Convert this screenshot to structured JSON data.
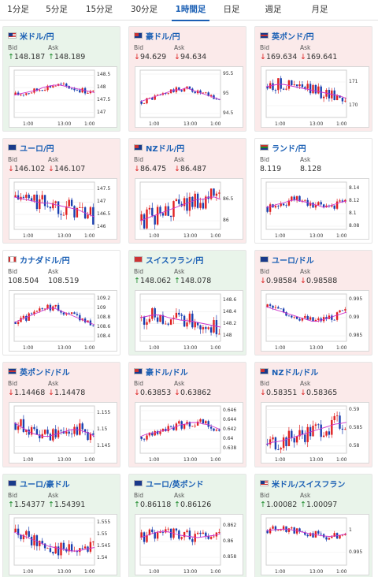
{
  "tabs": [
    {
      "label": "1分足",
      "active": false
    },
    {
      "label": "5分足",
      "active": false
    },
    {
      "label": "15分足",
      "active": false
    },
    {
      "label": "30分足",
      "active": false
    },
    {
      "label": "1時間足",
      "active": true
    },
    {
      "label": "日足",
      "active": false
    },
    {
      "label": "週足",
      "active": false
    },
    {
      "label": "月足",
      "active": false
    }
  ],
  "labels": {
    "bid": "Bid",
    "ask": "Ask"
  },
  "x_ticks": [
    "1:00",
    "13:00",
    "1:00"
  ],
  "colors": {
    "up_bg": "#e9f4ea",
    "down_bg": "#fbeaea",
    "up_arrow": "#1a8a2a",
    "down_arrow": "#d22222",
    "candle_up": "#e02020",
    "candle_down": "#1a3fb0",
    "ma": "#cc33cc",
    "link": "#1a5fb4"
  },
  "pairs": [
    {
      "name": "米ドル/円",
      "flag": "us",
      "dir": "up",
      "bid": "148.187",
      "ask": "148.189",
      "y_ticks": [
        "148.5",
        "148",
        "147.5",
        "147"
      ],
      "ylim": [
        146.8,
        148.7
      ],
      "chart_data": {
        "type": "line",
        "ma": [
          147.7,
          147.75,
          147.8,
          147.85,
          147.9,
          148.0,
          148.05,
          148.1,
          148.1,
          148.05,
          148.0,
          147.95,
          147.9,
          147.85,
          147.8
        ]
      }
    },
    {
      "name": "豪ドル/円",
      "flag": "au",
      "dir": "down",
      "bid": "94.629",
      "ask": "94.634",
      "y_ticks": [
        "95.5",
        "95",
        "94.5"
      ],
      "ylim": [
        94.4,
        95.6
      ],
      "chart_data": {
        "type": "line",
        "ma": [
          94.8,
          94.85,
          94.9,
          94.95,
          95.0,
          95.05,
          95.1,
          95.1,
          95.15,
          95.1,
          95.05,
          95.0,
          94.95,
          94.9,
          94.85
        ]
      }
    },
    {
      "name": "英ポンド/円",
      "flag": "uk",
      "dir": "down",
      "bid": "169.634",
      "ask": "169.641",
      "y_ticks": [
        "171",
        "170"
      ],
      "ylim": [
        169.5,
        171.5
      ],
      "chart_data": {
        "type": "line",
        "ma": [
          170.8,
          170.85,
          170.9,
          170.9,
          170.85,
          170.8,
          170.75,
          170.7,
          170.65,
          170.6,
          170.55,
          170.5,
          170.45,
          170.4,
          170.3
        ]
      }
    },
    {
      "name": "ユーロ/円",
      "flag": "eu",
      "dir": "down",
      "bid": "146.102",
      "ask": "146.107",
      "y_ticks": [
        "147.5",
        "147",
        "146.5",
        "146"
      ],
      "ylim": [
        145.9,
        147.8
      ],
      "chart_data": {
        "type": "line",
        "ma": [
          147.2,
          147.15,
          147.1,
          147.05,
          147.0,
          146.95,
          146.95,
          146.9,
          146.85,
          146.8,
          146.75,
          146.7,
          146.6,
          146.5,
          146.4
        ]
      }
    },
    {
      "name": "NZドル/円",
      "flag": "nz",
      "dir": "down",
      "bid": "86.475",
      "ask": "86.487",
      "y_ticks": [
        "86.5",
        "86"
      ],
      "ylim": [
        85.8,
        86.9
      ],
      "chart_data": {
        "type": "line",
        "ma": [
          86.0,
          86.05,
          86.1,
          86.15,
          86.2,
          86.25,
          86.3,
          86.35,
          86.4,
          86.45,
          86.5,
          86.5,
          86.55,
          86.55,
          86.5
        ]
      }
    },
    {
      "name": "ランド/円",
      "flag": "za",
      "dir": "flat",
      "bid": "8.119",
      "ask": "8.128",
      "y_ticks": [
        "8.14",
        "8.12",
        "8.1",
        "8.08"
      ],
      "ylim": [
        8.075,
        8.15
      ],
      "chart_data": {
        "type": "line",
        "ma": [
          8.11,
          8.112,
          8.115,
          8.117,
          8.12,
          8.122,
          8.12,
          8.118,
          8.115,
          8.113,
          8.11,
          8.112,
          8.115,
          8.118,
          8.12
        ]
      }
    },
    {
      "name": "カナダドル/円",
      "flag": "ca",
      "dir": "flat",
      "bid": "108.504",
      "ask": "108.519",
      "y_ticks": [
        "109.2",
        "109",
        "108.8",
        "108.6",
        "108.4"
      ],
      "ylim": [
        108.3,
        109.3
      ],
      "chart_data": {
        "type": "line",
        "ma": [
          108.7,
          108.75,
          108.8,
          108.85,
          108.9,
          108.95,
          109.0,
          109.0,
          108.95,
          108.9,
          108.85,
          108.8,
          108.75,
          108.7,
          108.65
        ]
      }
    },
    {
      "name": "スイスフラン/円",
      "flag": "ch",
      "dir": "up",
      "bid": "148.062",
      "ask": "148.078",
      "y_ticks": [
        "148.6",
        "148.4",
        "148.2",
        "148"
      ],
      "ylim": [
        147.9,
        148.7
      ],
      "chart_data": {
        "type": "line",
        "ma": [
          148.3,
          148.32,
          148.34,
          148.35,
          148.33,
          148.3,
          148.28,
          148.26,
          148.25,
          148.24,
          148.22,
          148.2,
          148.18,
          148.16,
          148.14
        ]
      }
    },
    {
      "name": "ユーロ/ドル",
      "flag": "eu",
      "dir": "down",
      "bid": "0.98584",
      "ask": "0.98588",
      "y_ticks": [
        "0.995",
        "0.99",
        "0.985"
      ],
      "ylim": [
        0.9835,
        0.9965
      ],
      "chart_data": {
        "type": "line",
        "ma": [
          0.993,
          0.9925,
          0.992,
          0.9915,
          0.991,
          0.9905,
          0.99,
          0.9895,
          0.989,
          0.989,
          0.9895,
          0.99,
          0.9905,
          0.991,
          0.9915
        ]
      }
    },
    {
      "name": "英ポンド/ドル",
      "flag": "uk",
      "dir": "down",
      "bid": "1.14468",
      "ask": "1.14478",
      "y_ticks": [
        "1.155",
        "1.15",
        "1.145"
      ],
      "ylim": [
        1.143,
        1.157
      ],
      "chart_data": {
        "type": "line",
        "ma": [
          1.152,
          1.151,
          1.15,
          1.149,
          1.1485,
          1.148,
          1.148,
          1.1485,
          1.149,
          1.1495,
          1.15,
          1.15,
          1.1495,
          1.149,
          1.148
        ]
      }
    },
    {
      "name": "豪ドル/ドル",
      "flag": "au",
      "dir": "down",
      "bid": "0.63853",
      "ask": "0.63862",
      "y_ticks": [
        "0.646",
        "0.644",
        "0.642",
        "0.64",
        "0.638"
      ],
      "ylim": [
        0.637,
        0.647
      ],
      "chart_data": {
        "type": "line",
        "ma": [
          0.6405,
          0.641,
          0.6412,
          0.6415,
          0.6418,
          0.642,
          0.6425,
          0.643,
          0.6432,
          0.6435,
          0.6435,
          0.6432,
          0.643,
          0.6425,
          0.642
        ]
      }
    },
    {
      "name": "NZドル/ドル",
      "flag": "nz",
      "dir": "down",
      "bid": "0.58351",
      "ask": "0.58365",
      "y_ticks": [
        "0.59",
        "0.585",
        "0.58"
      ],
      "ylim": [
        0.578,
        0.591
      ],
      "chart_data": {
        "type": "line",
        "ma": [
          0.5805,
          0.581,
          0.5812,
          0.5815,
          0.582,
          0.5825,
          0.583,
          0.5835,
          0.584,
          0.5845,
          0.585,
          0.5855,
          0.586,
          0.5862,
          0.5865
        ]
      }
    },
    {
      "name": "ユーロ/豪ドル",
      "flag": "eu",
      "dir": "up",
      "bid": "1.54377",
      "ask": "1.54391",
      "y_ticks": [
        "1.555",
        "1.55",
        "1.545",
        "1.54"
      ],
      "ylim": [
        1.537,
        1.557
      ],
      "chart_data": {
        "type": "line",
        "ma": [
          1.551,
          1.55,
          1.549,
          1.548,
          1.547,
          1.546,
          1.545,
          1.5445,
          1.544,
          1.5435,
          1.543,
          1.543,
          1.5435,
          1.544,
          1.5445
        ]
      }
    },
    {
      "name": "ユーロ/英ポンド",
      "flag": "eu",
      "dir": "up",
      "bid": "0.86118",
      "ask": "0.86126",
      "y_ticks": [
        "0.862",
        "0.86",
        "0.858"
      ],
      "ylim": [
        0.857,
        0.863
      ],
      "chart_data": {
        "type": "line",
        "ma": [
          0.8605,
          0.8607,
          0.861,
          0.8612,
          0.8613,
          0.8612,
          0.861,
          0.8608,
          0.8607,
          0.8606,
          0.8605,
          0.8606,
          0.8607,
          0.8608,
          0.861
        ]
      }
    },
    {
      "name": "米ドル/スイスフラン",
      "flag": "us",
      "dir": "up",
      "bid": "1.00082",
      "ask": "1.00097",
      "y_ticks": [
        "1",
        "0.995"
      ],
      "ylim": [
        0.992,
        1.003
      ],
      "chart_data": {
        "type": "line",
        "ma": [
          1.0,
          1.0002,
          1.0003,
          1.0004,
          1.0003,
          1.0001,
          0.9998,
          0.9995,
          0.9992,
          0.999,
          0.9988,
          0.9987,
          0.9988,
          0.999,
          0.9993
        ]
      }
    }
  ]
}
